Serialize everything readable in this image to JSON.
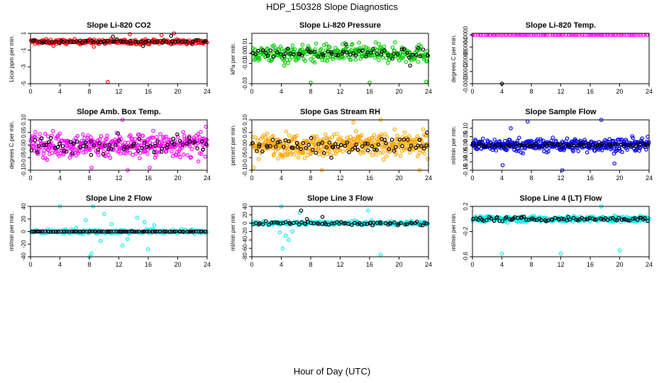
{
  "figure": {
    "title": "HDP_150328  Slope Diagnostics",
    "xlabel": "Hour of Day (UTC)"
  },
  "chart_data": [
    {
      "type": "scatter",
      "title": "Slope Li-820 CO2",
      "ylabel": "Licor ppm per min.",
      "xlim": [
        0,
        24
      ],
      "ylim": [
        -5,
        1
      ],
      "xticks": [
        0,
        4,
        8,
        12,
        16,
        20,
        24
      ],
      "yticks": [
        1,
        -1,
        -3,
        -5
      ],
      "ytick_labels": [
        "1",
        "-1",
        "-3",
        "-5"
      ],
      "series": [
        {
          "name": "slopes",
          "color": "#ff0000",
          "center": 0,
          "spread": 0.25,
          "count": 260,
          "outliers": [
            [
              10.5,
              -4.8
            ],
            [
              19.5,
              1.0
            ],
            [
              13.5,
              0.9
            ],
            [
              17.8,
              0.8
            ],
            [
              8.6,
              -0.6
            ],
            [
              3.1,
              -0.5
            ]
          ]
        },
        {
          "name": "line slopes",
          "color": "#000000",
          "center": 0,
          "spread": 0.2,
          "count": 60,
          "outliers": [
            [
              11.2,
              0.6
            ],
            [
              19.1,
              0.7
            ],
            [
              15.3,
              -0.5
            ]
          ]
        }
      ]
    },
    {
      "type": "scatter",
      "title": "Slope Li-820 Pressure",
      "ylabel": "kPa per min.",
      "xlim": [
        0,
        24
      ],
      "ylim": [
        -0.03,
        0.02
      ],
      "xticks": [
        0,
        4,
        8,
        12,
        16,
        20,
        24
      ],
      "yticks": [
        0.01,
        0.0,
        -0.01,
        -0.03
      ],
      "ytick_labels": [
        "0.01",
        "0.00",
        "-0.01",
        "-0.03"
      ],
      "series": [
        {
          "name": "slopes",
          "color": "#00cc00",
          "center": 0,
          "spread": 0.008,
          "count": 320,
          "outliers": [
            [
              8,
              -0.029
            ],
            [
              16,
              -0.029
            ],
            [
              23.7,
              -0.028
            ],
            [
              4.4,
              -0.012
            ]
          ]
        },
        {
          "name": "line slopes",
          "color": "#000000",
          "center": 0,
          "spread": 0.004,
          "count": 60,
          "outliers": [
            [
              12.8,
              0.009
            ],
            [
              21.5,
              -0.012
            ]
          ]
        }
      ]
    },
    {
      "type": "scatter",
      "title": "Slope Li-820 Temp.",
      "ylabel": "degrees C per min.",
      "xlim": [
        0,
        24
      ],
      "ylim": [
        -0.0016,
        5e-05
      ],
      "xticks": [
        0,
        4,
        8,
        12,
        16,
        20,
        24
      ],
      "yticks": [
        0.0,
        -0.0004,
        -0.0008,
        -0.0012,
        -0.0016
      ],
      "ytick_labels": [
        "0.0000",
        "-0.0004",
        "-0.0008",
        "-0.0012",
        "-0.0016"
      ],
      "series": [
        {
          "name": "slopes",
          "color": "#ff00ff",
          "center": 0,
          "spread": 0,
          "count": 90,
          "outliers": []
        },
        {
          "name": "line slopes",
          "color": "#000000",
          "center": 0,
          "spread": 0,
          "count": 0,
          "outliers": [
            [
              4,
              -0.0016
            ]
          ]
        }
      ]
    },
    {
      "type": "scatter",
      "title": "Slope Amb. Box Temp.",
      "ylabel": "degrees C per min.",
      "xlim": [
        0,
        24
      ],
      "ylim": [
        -0.1,
        0.1
      ],
      "xticks": [
        0,
        4,
        8,
        12,
        16,
        20,
        24
      ],
      "yticks": [
        0.1,
        0.05,
        0.0,
        -0.05,
        -0.1
      ],
      "ytick_labels": [
        "0.10",
        "0.05",
        "0.00",
        "-0.05",
        "-0.10"
      ],
      "series": [
        {
          "name": "slopes",
          "color": "#ff00ff",
          "center": 0,
          "spread": 0.045,
          "count": 380,
          "outliers": [
            [
              8.3,
              -0.09
            ],
            [
              13.2,
              -0.1
            ],
            [
              16.2,
              -0.09
            ],
            [
              12.5,
              0.1
            ]
          ]
        },
        {
          "name": "line slopes",
          "color": "#000000",
          "center": 0,
          "spread": 0.03,
          "count": 70,
          "outliers": []
        }
      ]
    },
    {
      "type": "scatter",
      "title": "Slope Gas Stream RH",
      "ylabel": "percent per min.",
      "xlim": [
        0,
        24
      ],
      "ylim": [
        -0.1,
        0.1
      ],
      "xticks": [
        0,
        4,
        8,
        12,
        16,
        20,
        24
      ],
      "yticks": [
        0.1,
        0.05,
        0.0,
        -0.05,
        -0.1
      ],
      "ytick_labels": [
        "0.10",
        "0.05",
        "0.00",
        "-0.05",
        "-0.10"
      ],
      "series": [
        {
          "name": "slopes",
          "color": "#ffa500",
          "center": 0,
          "spread": 0.04,
          "count": 420,
          "outliers": [
            [
              0.2,
              -0.09
            ],
            [
              9.5,
              -0.1
            ],
            [
              17.5,
              0.1
            ],
            [
              22.8,
              -0.1
            ],
            [
              13.8,
              0.09
            ]
          ]
        },
        {
          "name": "line slopes",
          "color": "#000000",
          "center": 0,
          "spread": 0.025,
          "count": 70,
          "outliers": [
            [
              23.8,
              0.05
            ],
            [
              10.8,
              -0.05
            ]
          ]
        }
      ]
    },
    {
      "type": "scatter",
      "title": "Slope Sample Flow",
      "ylabel": "ml/min per min.",
      "xlim": [
        0,
        24
      ],
      "ylim": [
        -0.15,
        0.15
      ],
      "xticks": [
        0,
        4,
        8,
        12,
        16,
        20,
        24
      ],
      "yticks": [
        0.1,
        0.05,
        0.0,
        -0.05,
        -0.1,
        -0.15
      ],
      "ytick_labels": [
        "0.10",
        "0.05",
        "0.00",
        "-0.05",
        "-0.10",
        "-0.15"
      ],
      "series": [
        {
          "name": "slopes",
          "color": "#0000ee",
          "center": 0,
          "spread": 0.035,
          "count": 380,
          "outliers": [
            [
              7.5,
              0.14
            ],
            [
              12.2,
              -0.15
            ],
            [
              17.5,
              0.15
            ],
            [
              4.1,
              -0.12
            ],
            [
              19.3,
              -0.11
            ],
            [
              5.2,
              0.1
            ]
          ]
        },
        {
          "name": "line slopes",
          "color": "#000000",
          "center": 0,
          "spread": 0.01,
          "count": 70,
          "outliers": []
        }
      ]
    },
    {
      "type": "scatter",
      "title": "Slope Line 2 Flow",
      "ylabel": "ml/min per min.",
      "xlim": [
        0,
        24
      ],
      "ylim": [
        -40,
        40
      ],
      "xticks": [
        0,
        4,
        8,
        12,
        16,
        20,
        24
      ],
      "yticks": [
        40,
        20,
        0,
        -20,
        -40
      ],
      "ytick_labels": [
        "40",
        "20",
        "0",
        "-20",
        "-40"
      ],
      "series": [
        {
          "name": "slopes",
          "color": "#00eeee",
          "center": 0,
          "spread": 3,
          "count": 200,
          "outliers": [
            [
              4,
              40
            ],
            [
              8.5,
              40
            ],
            [
              8,
              -40
            ],
            [
              8.3,
              -35
            ],
            [
              10,
              28
            ],
            [
              12.5,
              -22
            ],
            [
              14.5,
              22
            ],
            [
              16,
              -28
            ],
            [
              9.5,
              -15
            ],
            [
              11,
              12
            ],
            [
              15.5,
              15
            ],
            [
              13.2,
              -12
            ],
            [
              7.5,
              18
            ],
            [
              16.8,
              10
            ],
            [
              6.2,
              6
            ]
          ]
        },
        {
          "name": "line slopes",
          "color": "#000000",
          "center": 0,
          "spread": 0.3,
          "count": 90,
          "outliers": []
        }
      ]
    },
    {
      "type": "scatter",
      "title": "Slope Line 3 Flow",
      "ylabel": "ml/min per min.",
      "xlim": [
        0,
        24
      ],
      "ylim": [
        -80,
        40
      ],
      "xticks": [
        0,
        4,
        8,
        12,
        16,
        20,
        24
      ],
      "yticks": [
        40,
        20,
        0,
        -20,
        -40,
        -60,
        -80
      ],
      "ytick_labels": [
        "40",
        "20",
        "0",
        "-20",
        "-40",
        "-60",
        "-80"
      ],
      "series": [
        {
          "name": "slopes",
          "color": "#00eeee",
          "center": 0,
          "spread": 4,
          "count": 220,
          "outliers": [
            [
              4.2,
              -60
            ],
            [
              5,
              -40
            ],
            [
              4.6,
              -30
            ],
            [
              5.5,
              -20
            ],
            [
              17.5,
              -75
            ],
            [
              15.8,
              30
            ],
            [
              4,
              40
            ],
            [
              6.5,
              25
            ],
            [
              3.8,
              -22
            ]
          ]
        },
        {
          "name": "line slopes",
          "color": "#000000",
          "center": 0,
          "spread": 4,
          "count": 70,
          "outliers": [
            [
              6.7,
              30
            ],
            [
              7.5,
              10
            ],
            [
              9.6,
              15
            ],
            [
              16.4,
              -5
            ]
          ]
        }
      ]
    },
    {
      "type": "scatter",
      "title": "Slope Line 4 (LT) Flow",
      "ylabel": "ml/min per min.",
      "xlim": [
        0,
        24
      ],
      "ylim": [
        -0.6,
        0.2
      ],
      "xticks": [
        0,
        4,
        8,
        12,
        16,
        20,
        24
      ],
      "yticks": [
        0.2,
        -0.2,
        -0.6
      ],
      "ytick_labels": [
        "0.2",
        "-0.2",
        "-0.6"
      ],
      "series": [
        {
          "name": "slopes",
          "color": "#00eeee",
          "center": 0,
          "spread": 0.04,
          "count": 340,
          "outliers": [
            [
              4,
              -0.55
            ],
            [
              12,
              -0.55
            ],
            [
              20,
              -0.5
            ],
            [
              17.5,
              0.2
            ]
          ]
        },
        {
          "name": "line slopes",
          "color": "#000000",
          "center": 0,
          "spread": 0.03,
          "count": 80,
          "outliers": []
        }
      ]
    }
  ]
}
